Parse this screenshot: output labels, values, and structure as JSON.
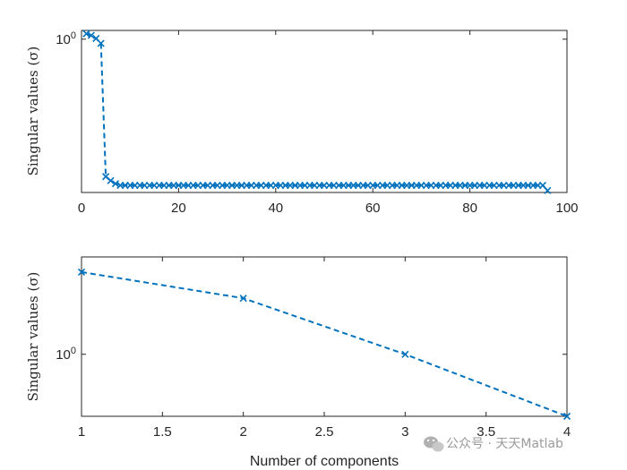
{
  "colors": {
    "series": "#0072BD",
    "axis": "#262626",
    "background": "#ffffff"
  },
  "watermark": {
    "text": "公众号 · 天天Matlab",
    "icon": "wechat-icon"
  },
  "chart_data": [
    {
      "type": "line",
      "line_style": "dashed",
      "marker": "x",
      "ylabel": "Singular values (σ)",
      "xlabel": "",
      "xlim": [
        0,
        100
      ],
      "xticks": [
        0,
        20,
        40,
        60,
        80,
        100
      ],
      "xtick_labels": [
        "0",
        "20",
        "40",
        "60",
        "80",
        "100"
      ],
      "yscale": "log",
      "ylim": [
        0.02,
        1.25
      ],
      "yticks": [
        1
      ],
      "ytick_labels": [
        "10^0"
      ],
      "grid": false,
      "x": [
        1,
        2,
        3,
        4,
        5,
        6,
        7,
        8,
        9,
        10,
        11,
        12,
        13,
        14,
        15,
        16,
        17,
        18,
        19,
        20,
        21,
        22,
        23,
        24,
        25,
        26,
        27,
        28,
        29,
        30,
        31,
        32,
        33,
        34,
        35,
        36,
        37,
        38,
        39,
        40,
        41,
        42,
        43,
        44,
        45,
        46,
        47,
        48,
        49,
        50,
        51,
        52,
        53,
        54,
        55,
        56,
        57,
        58,
        59,
        60,
        61,
        62,
        63,
        64,
        65,
        66,
        67,
        68,
        69,
        70,
        71,
        72,
        73,
        74,
        75,
        76,
        77,
        78,
        79,
        80,
        81,
        82,
        83,
        84,
        85,
        86,
        87,
        88,
        89,
        90,
        91,
        92,
        93,
        94,
        95,
        96
      ],
      "y": [
        1.15,
        1.1,
        1.02,
        0.9,
        0.03,
        0.027,
        0.025,
        0.024,
        0.024,
        0.024,
        0.024,
        0.024,
        0.024,
        0.024,
        0.024,
        0.024,
        0.024,
        0.024,
        0.024,
        0.024,
        0.024,
        0.024,
        0.024,
        0.024,
        0.024,
        0.024,
        0.024,
        0.024,
        0.024,
        0.024,
        0.024,
        0.024,
        0.024,
        0.024,
        0.024,
        0.024,
        0.024,
        0.024,
        0.024,
        0.024,
        0.024,
        0.024,
        0.024,
        0.024,
        0.024,
        0.024,
        0.024,
        0.024,
        0.024,
        0.024,
        0.024,
        0.024,
        0.024,
        0.024,
        0.024,
        0.024,
        0.024,
        0.024,
        0.024,
        0.024,
        0.024,
        0.024,
        0.024,
        0.024,
        0.024,
        0.024,
        0.024,
        0.024,
        0.024,
        0.024,
        0.024,
        0.024,
        0.024,
        0.024,
        0.024,
        0.024,
        0.024,
        0.024,
        0.024,
        0.024,
        0.024,
        0.024,
        0.024,
        0.024,
        0.024,
        0.024,
        0.024,
        0.024,
        0.024,
        0.024,
        0.024,
        0.024,
        0.024,
        0.024,
        0.024,
        0.021
      ]
    },
    {
      "type": "line",
      "line_style": "dashed",
      "marker": "x",
      "ylabel": "Singular values (σ)",
      "xlabel": "Number of components",
      "xlim": [
        1,
        4
      ],
      "xticks": [
        1,
        1.5,
        2,
        2.5,
        3,
        3.5,
        4
      ],
      "xtick_labels": [
        "1",
        "1.5",
        "2",
        "2.5",
        "3",
        "3.5",
        "4"
      ],
      "yscale": "log",
      "ylim": [
        0.9,
        1.18
      ],
      "yticks": [
        1
      ],
      "ytick_labels": [
        "10^0"
      ],
      "grid": false,
      "x": [
        1,
        2,
        3,
        4
      ],
      "y": [
        1.15,
        1.1,
        1.0,
        0.9
      ]
    }
  ]
}
